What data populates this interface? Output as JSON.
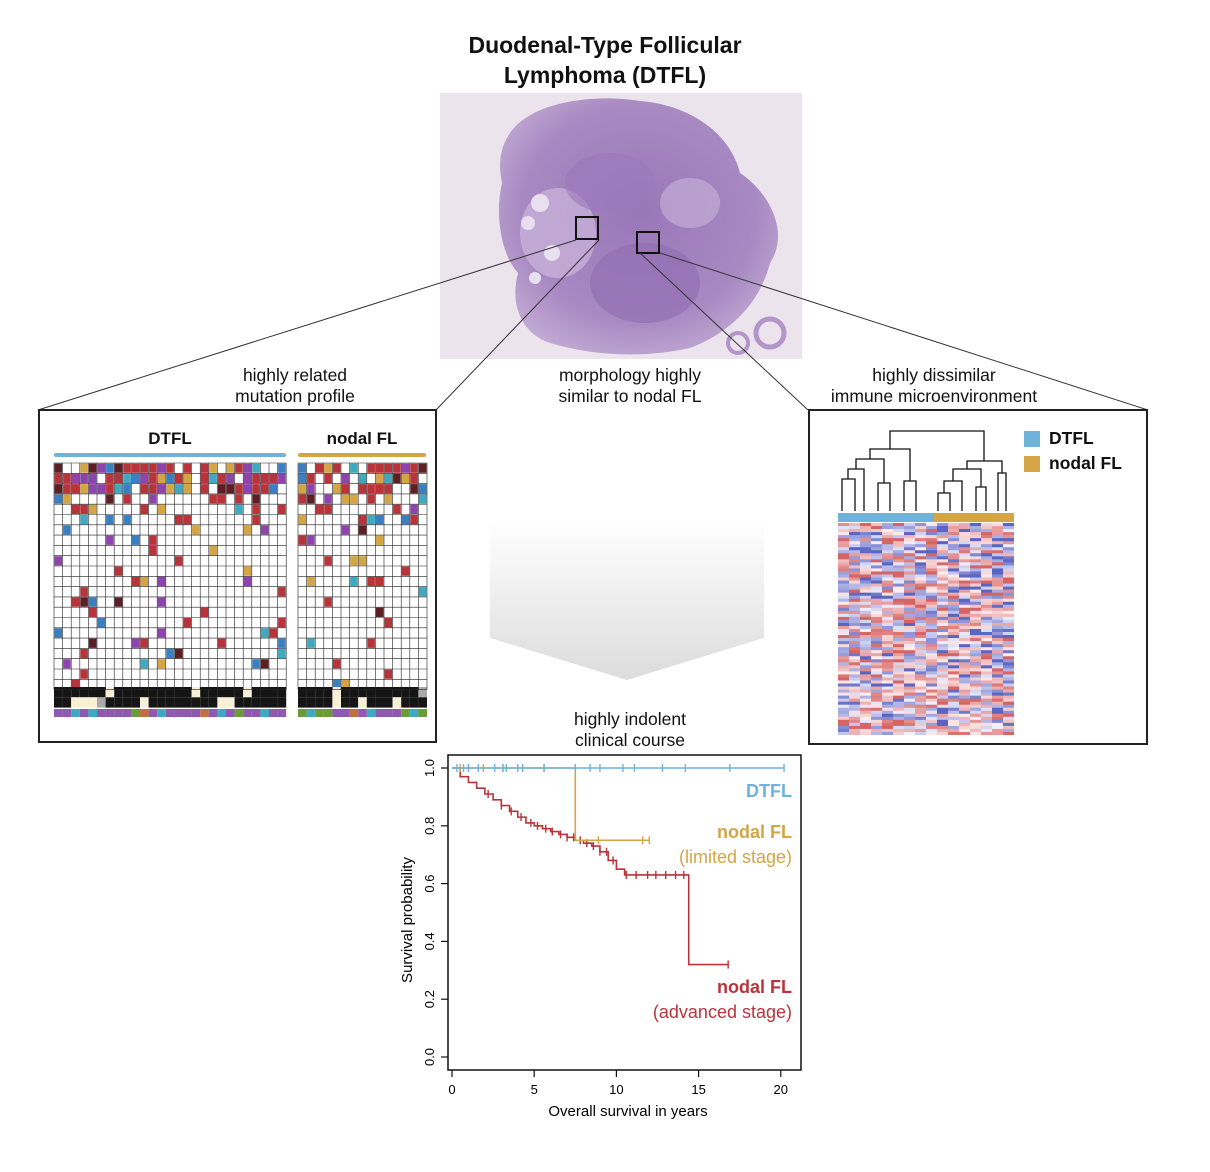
{
  "title": {
    "line1": "Duodenal-Type Follicular",
    "line2": "Lymphoma (DTFL)"
  },
  "captions": {
    "mutation": [
      "highly related",
      "mutation profile"
    ],
    "morphology": [
      "morphology highly",
      "similar to nodal FL"
    ],
    "immune": [
      "highly dissimilar",
      "immune microenvironment"
    ],
    "clinical": [
      "highly indolent",
      "clinical course"
    ]
  },
  "mutation_panel": {
    "group_dtfl": "DTFL",
    "group_nodal": "nodal FL"
  },
  "immune_panel": {
    "legend_dtfl": "DTFL",
    "legend_nodal": "nodal FL"
  },
  "colors": {
    "dtfl": "#6fb3db",
    "nodal": "#d3a545",
    "advanced": "#b8333a",
    "limited": "#d3a545"
  },
  "chart_data": {
    "type": "line",
    "xlabel": "Overall survival in years",
    "ylabel": "Survival probability",
    "xlim": [
      0,
      20.5
    ],
    "ylim": [
      0,
      1.0
    ],
    "x_ticks": [
      "0",
      "5",
      "10",
      "15",
      "20"
    ],
    "y_ticks": [
      "0.0",
      "0.2",
      "0.4",
      "0.6",
      "0.8",
      "1.0"
    ],
    "series": [
      {
        "name": "DTFL",
        "x": [
          0,
          20.2
        ],
        "y": [
          1.0,
          1.0
        ],
        "censor_x": [
          0.3,
          0.7,
          1.0,
          1.6,
          2.6,
          3.1,
          3.3,
          4.0,
          4.3,
          5.6,
          7.5,
          8.4,
          9.0,
          10.4,
          11.1,
          12.8,
          14.2,
          16.9,
          20.2
        ]
      },
      {
        "name": "nodal FL",
        "note": "(limited stage)",
        "x": [
          0,
          7.5,
          7.5,
          12.0
        ],
        "y": [
          1.0,
          1.0,
          0.75,
          0.75
        ],
        "censor_x": [
          0.5,
          1.0,
          1.9,
          3.1,
          5.6,
          8.9,
          11.6,
          12.0
        ]
      },
      {
        "name": "nodal FL",
        "note": "(advanced stage)",
        "x": [
          0,
          0.5,
          1.0,
          1.5,
          2.0,
          2.5,
          3.0,
          3.5,
          4.0,
          4.5,
          5.0,
          5.5,
          6.0,
          6.5,
          7.0,
          7.5,
          8.0,
          8.5,
          9.0,
          9.5,
          10.0,
          10.5,
          14.4,
          14.4,
          16.8
        ],
        "y": [
          1.0,
          0.97,
          0.95,
          0.93,
          0.91,
          0.89,
          0.87,
          0.85,
          0.83,
          0.81,
          0.8,
          0.79,
          0.78,
          0.77,
          0.76,
          0.75,
          0.74,
          0.73,
          0.71,
          0.68,
          0.65,
          0.63,
          0.63,
          0.32,
          0.32
        ],
        "censor_x": [
          2.2,
          3.0,
          3.6,
          4.2,
          4.8,
          5.2,
          5.7,
          6.1,
          6.6,
          7.0,
          7.4,
          7.8,
          8.2,
          8.6,
          9.0,
          9.4,
          9.8,
          10.6,
          11.2,
          11.9,
          12.4,
          13.0,
          13.6,
          14.1,
          16.8
        ]
      }
    ]
  }
}
